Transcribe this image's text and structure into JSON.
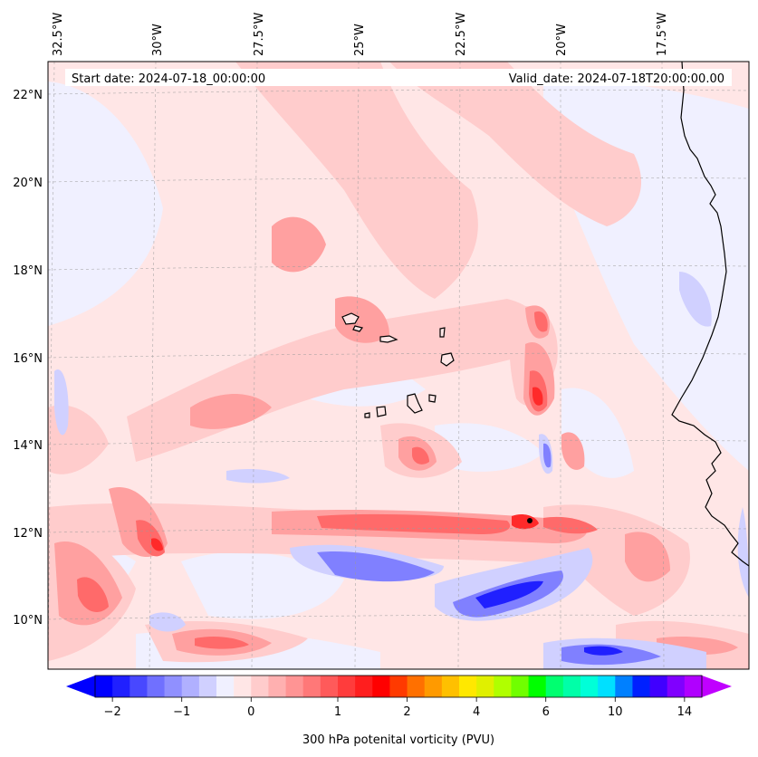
{
  "map": {
    "start_date": "Start date: 2024-07-18_00:00:00",
    "valid_date": "Valid_date: 2024-07-18T20:00:00.00",
    "lon_labels": [
      "32.5°W",
      "30°W",
      "27.5°W",
      "25°W",
      "22.5°W",
      "20°W",
      "17.5°W"
    ],
    "lat_labels": [
      "22°N",
      "20°N",
      "18°N",
      "16°N",
      "14°N",
      "12°N",
      "10°N"
    ],
    "extent": {
      "lon_min": -32.7,
      "lon_max": -15.2,
      "lat_min": 8.9,
      "lat_max": 22.8
    }
  },
  "colorbar": {
    "title": "300 hPa potenital vorticity (PVU)",
    "tick_labels": [
      "−2",
      "−1",
      "0",
      "1",
      "2",
      "4",
      "6",
      "10",
      "14"
    ],
    "colors": [
      "#0000ff",
      "#2020ff",
      "#4848ff",
      "#7070ff",
      "#9090ff",
      "#b0b0ff",
      "#d0d0ff",
      "#f0f0ff",
      "#ffe6e6",
      "#ffcccc",
      "#ffb0b0",
      "#ff9494",
      "#ff7878",
      "#ff5a5a",
      "#ff3c3c",
      "#ff1e1e",
      "#ff0000",
      "#ff3a00",
      "#ff7000",
      "#ff9a00",
      "#ffc000",
      "#ffe800",
      "#e0f000",
      "#b0ff00",
      "#70ff00",
      "#00ff00",
      "#00ff70",
      "#00ffa8",
      "#00ffd8",
      "#00e0ff",
      "#0080ff",
      "#0020ff",
      "#4000ff",
      "#8000ff",
      "#b000ff"
    ],
    "extend_low_color": "#0000ff",
    "extend_high_color": "#c000ff"
  },
  "field_colors": {
    "background": "#ffe6e6",
    "pale": "#f0f0ff",
    "light_red": "#ffcccc",
    "mid_red": "#ffa0a0",
    "red": "#ff7070",
    "strong_red": "#ff3030",
    "deep_red": "#ff0000",
    "light_blue": "#d0d0ff",
    "blue": "#8080ff",
    "deep_blue": "#2020ff"
  }
}
